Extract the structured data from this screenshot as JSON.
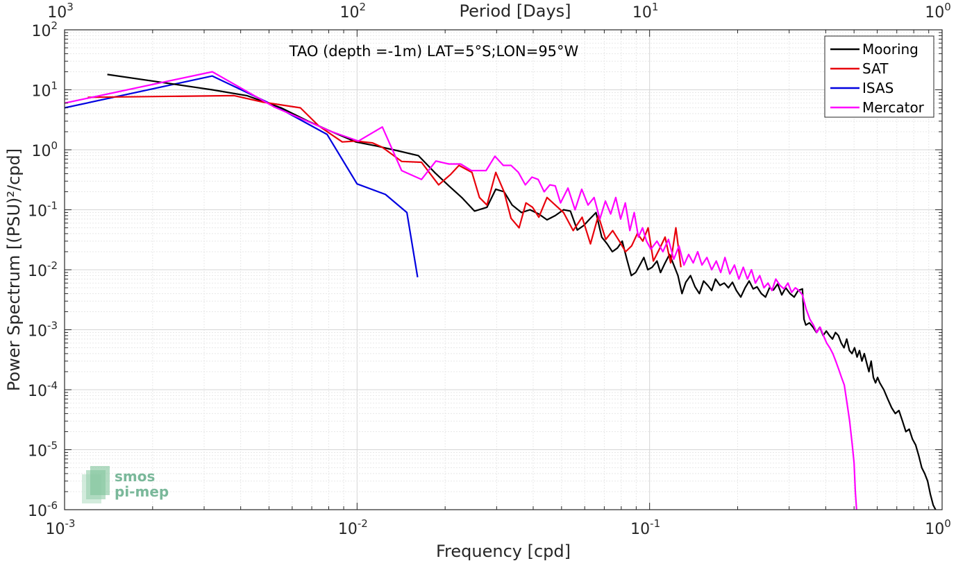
{
  "chart_data": {
    "type": "line",
    "title": "TAO (depth =-1m) LAT=5°S;LON=95°W",
    "xlabel": "Frequency [cpd]",
    "ylabel": "Power Spectrum [(PSU)²/cpd]",
    "top_xlabel": "Period [Days]",
    "xscale": "log",
    "yscale": "log",
    "xlim": [
      0.001,
      1
    ],
    "ylim": [
      1e-06,
      100
    ],
    "grid": true,
    "legend_position": "top-right",
    "x_ticks": [
      {
        "value": 0.001,
        "base": "10",
        "exp": "-3"
      },
      {
        "value": 0.01,
        "base": "10",
        "exp": "-2"
      },
      {
        "value": 0.1,
        "base": "10",
        "exp": "-1"
      },
      {
        "value": 1,
        "base": "10",
        "exp": "0"
      }
    ],
    "y_ticks": [
      {
        "value": 1e-06,
        "base": "10",
        "exp": "-6"
      },
      {
        "value": 1e-05,
        "base": "10",
        "exp": "-5"
      },
      {
        "value": 0.0001,
        "base": "10",
        "exp": "-4"
      },
      {
        "value": 0.001,
        "base": "10",
        "exp": "-3"
      },
      {
        "value": 0.01,
        "base": "10",
        "exp": "-2"
      },
      {
        "value": 0.1,
        "base": "10",
        "exp": "-1"
      },
      {
        "value": 1,
        "base": "10",
        "exp": "0"
      },
      {
        "value": 10,
        "base": "10",
        "exp": "1"
      },
      {
        "value": 100,
        "base": "10",
        "exp": "2"
      }
    ],
    "top_ticks": [
      {
        "value": 0.001,
        "base": "10",
        "exp": "3"
      },
      {
        "value": 0.01,
        "base": "10",
        "exp": "2"
      },
      {
        "value": 0.1,
        "base": "10",
        "exp": "1"
      },
      {
        "value": 1,
        "base": "10",
        "exp": "0"
      }
    ],
    "series": [
      {
        "name": "Mooring",
        "color": "#000000",
        "points": [
          [
            0.0014,
            18
          ],
          [
            0.0021,
            13.5
          ],
          [
            0.0032,
            10
          ],
          [
            0.0042,
            8
          ],
          [
            0.0055,
            5
          ],
          [
            0.0068,
            3
          ],
          [
            0.0082,
            2
          ],
          [
            0.0099,
            1.35
          ],
          [
            0.0117,
            1.15
          ],
          [
            0.0138,
            0.96
          ],
          [
            0.0162,
            0.8
          ],
          [
            0.0185,
            0.41
          ],
          [
            0.0206,
            0.25
          ],
          [
            0.0228,
            0.16
          ],
          [
            0.0252,
            0.095
          ],
          [
            0.0278,
            0.11
          ],
          [
            0.0298,
            0.22
          ],
          [
            0.0318,
            0.2
          ],
          [
            0.0339,
            0.12
          ],
          [
            0.0365,
            0.09
          ],
          [
            0.039,
            0.1
          ],
          [
            0.0418,
            0.085
          ],
          [
            0.0446,
            0.068
          ],
          [
            0.0476,
            0.08
          ],
          [
            0.0508,
            0.1
          ],
          [
            0.0536,
            0.095
          ],
          [
            0.0566,
            0.046
          ],
          [
            0.0596,
            0.055
          ],
          [
            0.0624,
            0.07
          ],
          [
            0.0656,
            0.09
          ],
          [
            0.0686,
            0.035
          ],
          [
            0.0716,
            0.027
          ],
          [
            0.0746,
            0.02
          ],
          [
            0.0776,
            0.023
          ],
          [
            0.0806,
            0.03
          ],
          [
            0.0836,
            0.015
          ],
          [
            0.0866,
            0.008
          ],
          [
            0.0896,
            0.009
          ],
          [
            0.0926,
            0.012
          ],
          [
            0.0956,
            0.016
          ],
          [
            0.0986,
            0.01
          ],
          [
            0.102,
            0.011
          ],
          [
            0.106,
            0.014
          ],
          [
            0.109,
            0.009
          ],
          [
            0.113,
            0.013
          ],
          [
            0.117,
            0.018
          ],
          [
            0.121,
            0.012
          ],
          [
            0.125,
            0.008
          ],
          [
            0.129,
            0.004
          ],
          [
            0.133,
            0.0062
          ],
          [
            0.138,
            0.008
          ],
          [
            0.143,
            0.0052
          ],
          [
            0.148,
            0.004
          ],
          [
            0.153,
            0.0065
          ],
          [
            0.158,
            0.0055
          ],
          [
            0.163,
            0.0045
          ],
          [
            0.168,
            0.007
          ],
          [
            0.174,
            0.0055
          ],
          [
            0.18,
            0.006
          ],
          [
            0.186,
            0.005
          ],
          [
            0.192,
            0.0062
          ],
          [
            0.198,
            0.0045
          ],
          [
            0.205,
            0.0035
          ],
          [
            0.212,
            0.005
          ],
          [
            0.219,
            0.0065
          ],
          [
            0.226,
            0.0048
          ],
          [
            0.233,
            0.0052
          ],
          [
            0.241,
            0.004
          ],
          [
            0.249,
            0.0035
          ],
          [
            0.257,
            0.005
          ],
          [
            0.265,
            0.0046
          ],
          [
            0.274,
            0.0058
          ],
          [
            0.283,
            0.0038
          ],
          [
            0.292,
            0.005
          ],
          [
            0.302,
            0.004
          ],
          [
            0.312,
            0.0035
          ],
          [
            0.322,
            0.0045
          ],
          [
            0.333,
            0.0048
          ],
          [
            0.337,
            0.0015
          ],
          [
            0.342,
            0.0012
          ],
          [
            0.352,
            0.0013
          ],
          [
            0.362,
            0.0011
          ],
          [
            0.372,
            0.0009
          ],
          [
            0.382,
            0.0011
          ],
          [
            0.392,
            0.0008
          ],
          [
            0.402,
            0.00095
          ],
          [
            0.412,
            0.0008
          ],
          [
            0.422,
            0.0007
          ],
          [
            0.432,
            0.0009
          ],
          [
            0.442,
            0.0008
          ],
          [
            0.452,
            0.0006
          ],
          [
            0.462,
            0.0005
          ],
          [
            0.472,
            0.0007
          ],
          [
            0.482,
            0.00045
          ],
          [
            0.492,
            0.0004
          ],
          [
            0.502,
            0.0005
          ],
          [
            0.512,
            0.00035
          ],
          [
            0.522,
            0.00045
          ],
          [
            0.532,
            0.0003
          ],
          [
            0.542,
            0.0004
          ],
          [
            0.552,
            0.00028
          ],
          [
            0.562,
            0.0002
          ],
          [
            0.572,
            0.0003
          ],
          [
            0.582,
            0.00016
          ],
          [
            0.592,
            0.00013
          ],
          [
            0.602,
            0.00016
          ],
          [
            0.612,
            0.00013
          ],
          [
            0.632,
            0.0001
          ],
          [
            0.652,
            7e-05
          ],
          [
            0.672,
            5e-05
          ],
          [
            0.692,
            4e-05
          ],
          [
            0.712,
            4.5e-05
          ],
          [
            0.732,
            3e-05
          ],
          [
            0.752,
            2e-05
          ],
          [
            0.772,
            2.2e-05
          ],
          [
            0.792,
            1.5e-05
          ],
          [
            0.812,
            1.2e-05
          ],
          [
            0.832,
            8e-06
          ],
          [
            0.852,
            5e-06
          ],
          [
            0.872,
            4e-06
          ],
          [
            0.892,
            3e-06
          ],
          [
            0.912,
            1.8e-06
          ],
          [
            0.932,
            1.2e-06
          ],
          [
            0.95,
            1e-06
          ]
        ]
      },
      {
        "name": "SAT",
        "color": "#e8000b",
        "points": [
          [
            0.0012,
            7.5
          ],
          [
            0.0038,
            8
          ],
          [
            0.0048,
            6.2
          ],
          [
            0.0064,
            5
          ],
          [
            0.0074,
            2.5
          ],
          [
            0.0089,
            1.35
          ],
          [
            0.0099,
            1.4
          ],
          [
            0.0113,
            1.3
          ],
          [
            0.0122,
            1.1
          ],
          [
            0.0142,
            0.64
          ],
          [
            0.0166,
            0.62
          ],
          [
            0.019,
            0.26
          ],
          [
            0.0209,
            0.39
          ],
          [
            0.0223,
            0.55
          ],
          [
            0.0247,
            0.42
          ],
          [
            0.0262,
            0.16
          ],
          [
            0.0278,
            0.12
          ],
          [
            0.0298,
            0.42
          ],
          [
            0.0318,
            0.2
          ],
          [
            0.0336,
            0.072
          ],
          [
            0.0358,
            0.05
          ],
          [
            0.0378,
            0.13
          ],
          [
            0.0398,
            0.11
          ],
          [
            0.0418,
            0.075
          ],
          [
            0.0446,
            0.16
          ],
          [
            0.0476,
            0.12
          ],
          [
            0.0508,
            0.09
          ],
          [
            0.0548,
            0.045
          ],
          [
            0.0588,
            0.075
          ],
          [
            0.0628,
            0.027
          ],
          [
            0.0668,
            0.08
          ],
          [
            0.0708,
            0.032
          ],
          [
            0.0748,
            0.045
          ],
          [
            0.0788,
            0.03
          ],
          [
            0.0828,
            0.02
          ],
          [
            0.0868,
            0.025
          ],
          [
            0.0908,
            0.04
          ],
          [
            0.0948,
            0.03
          ],
          [
            0.0988,
            0.05
          ],
          [
            0.103,
            0.014
          ],
          [
            0.108,
            0.022
          ],
          [
            0.113,
            0.035
          ],
          [
            0.118,
            0.013
          ],
          [
            0.123,
            0.05
          ],
          [
            0.128,
            0.011
          ]
        ]
      },
      {
        "name": "ISAS",
        "color": "#0000e0",
        "points": [
          [
            0.001,
            5
          ],
          [
            0.0032,
            17
          ],
          [
            0.0052,
            5.5
          ],
          [
            0.0079,
            1.8
          ],
          [
            0.01,
            0.27
          ],
          [
            0.0125,
            0.18
          ],
          [
            0.0148,
            0.09
          ],
          [
            0.0161,
            0.0075
          ]
        ]
      },
      {
        "name": "Mercator",
        "color": "#ff00ff",
        "points": [
          [
            0.001,
            6
          ],
          [
            0.0032,
            20
          ],
          [
            0.0052,
            5.2
          ],
          [
            0.0082,
            2
          ],
          [
            0.0101,
            1.4
          ],
          [
            0.0122,
            2.4
          ],
          [
            0.0142,
            0.45
          ],
          [
            0.0166,
            0.32
          ],
          [
            0.0186,
            0.65
          ],
          [
            0.0206,
            0.58
          ],
          [
            0.0226,
            0.58
          ],
          [
            0.0246,
            0.45
          ],
          [
            0.0276,
            0.45
          ],
          [
            0.0296,
            0.78
          ],
          [
            0.0316,
            0.55
          ],
          [
            0.0336,
            0.55
          ],
          [
            0.0356,
            0.42
          ],
          [
            0.0376,
            0.26
          ],
          [
            0.0396,
            0.35
          ],
          [
            0.0416,
            0.32
          ],
          [
            0.0436,
            0.2
          ],
          [
            0.0456,
            0.26
          ],
          [
            0.0476,
            0.25
          ],
          [
            0.0496,
            0.13
          ],
          [
            0.0526,
            0.23
          ],
          [
            0.0556,
            0.1
          ],
          [
            0.0586,
            0.22
          ],
          [
            0.0616,
            0.12
          ],
          [
            0.0646,
            0.16
          ],
          [
            0.0676,
            0.07
          ],
          [
            0.0706,
            0.14
          ],
          [
            0.0736,
            0.085
          ],
          [
            0.0766,
            0.16
          ],
          [
            0.0796,
            0.07
          ],
          [
            0.0826,
            0.13
          ],
          [
            0.0856,
            0.045
          ],
          [
            0.0886,
            0.09
          ],
          [
            0.0916,
            0.035
          ],
          [
            0.0946,
            0.05
          ],
          [
            0.0976,
            0.03
          ],
          [
            0.101,
            0.022
          ],
          [
            0.106,
            0.03
          ],
          [
            0.111,
            0.02
          ],
          [
            0.116,
            0.032
          ],
          [
            0.121,
            0.015
          ],
          [
            0.126,
            0.025
          ],
          [
            0.131,
            0.012
          ],
          [
            0.136,
            0.018
          ],
          [
            0.141,
            0.013
          ],
          [
            0.146,
            0.02
          ],
          [
            0.151,
            0.012
          ],
          [
            0.157,
            0.016
          ],
          [
            0.163,
            0.01
          ],
          [
            0.169,
            0.014
          ],
          [
            0.175,
            0.009
          ],
          [
            0.181,
            0.016
          ],
          [
            0.188,
            0.0085
          ],
          [
            0.195,
            0.012
          ],
          [
            0.202,
            0.007
          ],
          [
            0.209,
            0.011
          ],
          [
            0.216,
            0.007
          ],
          [
            0.223,
            0.01
          ],
          [
            0.23,
            0.006
          ],
          [
            0.238,
            0.008
          ],
          [
            0.246,
            0.005
          ],
          [
            0.254,
            0.006
          ],
          [
            0.262,
            0.0045
          ],
          [
            0.27,
            0.007
          ],
          [
            0.279,
            0.0055
          ],
          [
            0.288,
            0.0048
          ],
          [
            0.297,
            0.006
          ],
          [
            0.306,
            0.0042
          ],
          [
            0.315,
            0.005
          ],
          [
            0.324,
            0.0045
          ],
          [
            0.333,
            0.0038
          ],
          [
            0.343,
            0.0022
          ],
          [
            0.353,
            0.0015
          ],
          [
            0.363,
            0.0012
          ],
          [
            0.373,
            0.0009
          ],
          [
            0.383,
            0.0011
          ],
          [
            0.393,
            0.0008
          ],
          [
            0.403,
            0.0006
          ],
          [
            0.413,
            0.0005
          ],
          [
            0.423,
            0.0004
          ],
          [
            0.433,
            0.0003
          ],
          [
            0.443,
            0.00022
          ],
          [
            0.453,
            0.00016
          ],
          [
            0.463,
            0.00012
          ],
          [
            0.473,
            6e-05
          ],
          [
            0.483,
            3e-05
          ],
          [
            0.493,
            1.2e-05
          ],
          [
            0.5,
            6e-06
          ],
          [
            0.505,
            2e-06
          ],
          [
            0.51,
            1e-06
          ]
        ]
      }
    ]
  },
  "logo": {
    "line1": "smos",
    "line2": "pi-mep"
  }
}
